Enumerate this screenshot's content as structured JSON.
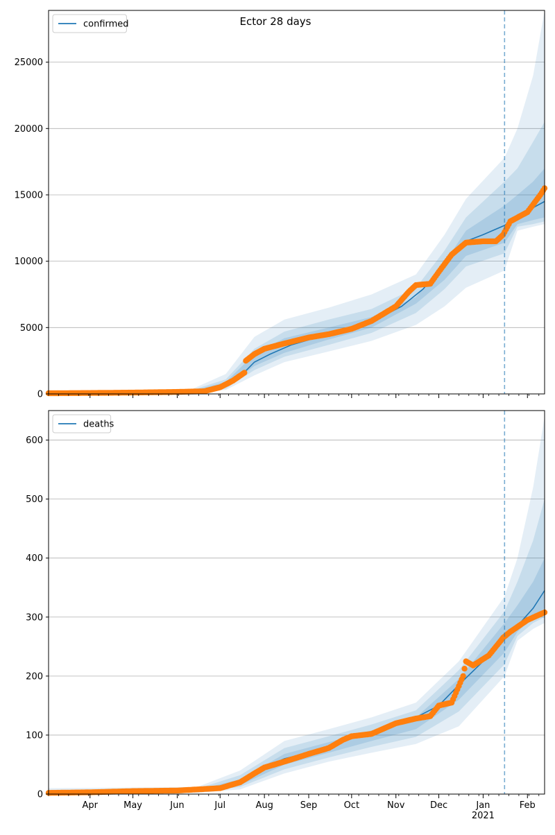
{
  "figure": {
    "title": "Ector 28 days"
  },
  "colors": {
    "model_line": "#1f77b4",
    "observed": "#ff7f0e",
    "band": "#1f77b4",
    "forecast_line": "#1f77b4",
    "grid": "#b0b0b0"
  },
  "chart_data": [
    {
      "type": "line",
      "title": "Ector 28 days",
      "xlabel": "",
      "ylabel": "",
      "legend": {
        "position": "top-left",
        "entries": [
          "confirmed"
        ]
      },
      "grid": {
        "y": true,
        "x": false
      },
      "ylim": [
        0,
        28900
      ],
      "yticks": [
        0,
        5000,
        10000,
        15000,
        20000,
        25000
      ],
      "xlim": [
        "2020-03-03",
        "2021-02-13"
      ],
      "forecast_start": "2021-01-16",
      "series": [
        {
          "name": "confirmed",
          "kind": "model-median",
          "x": [
            "2020-06-10",
            "2020-06-25",
            "2020-07-05",
            "2020-07-15",
            "2020-07-25",
            "2020-08-05",
            "2020-08-20",
            "2020-09-05",
            "2020-09-20",
            "2020-10-05",
            "2020-10-20",
            "2020-11-05",
            "2020-11-20",
            "2020-12-01",
            "2020-12-10",
            "2020-12-20",
            "2021-01-01",
            "2021-01-16",
            "2021-01-25",
            "2021-02-13"
          ],
          "y": [
            150,
            300,
            650,
            1300,
            2400,
            3000,
            3700,
            4200,
            4600,
            5100,
            5700,
            6600,
            7900,
            9300,
            10700,
            11500,
            12000,
            12700,
            13400,
            14500
          ]
        },
        {
          "name": "",
          "kind": "observed",
          "x": [
            "2020-03-03",
            "2020-04-01",
            "2020-05-01",
            "2020-06-01",
            "2020-06-20",
            "2020-07-01",
            "2020-07-10",
            "2020-07-18",
            "2020-07-19",
            "2020-07-25",
            "2020-08-01",
            "2020-08-15",
            "2020-09-01",
            "2020-09-15",
            "2020-10-01",
            "2020-10-15",
            "2020-11-01",
            "2020-11-10",
            "2020-11-15",
            "2020-11-25",
            "2020-12-01",
            "2020-12-10",
            "2020-12-20",
            "2021-01-01",
            "2021-01-10",
            "2021-01-15",
            "2021-01-20",
            "2021-02-01",
            "2021-02-10",
            "2021-02-13"
          ],
          "y": [
            50,
            70,
            100,
            150,
            200,
            500,
            1000,
            1600,
            2500,
            3000,
            3400,
            3800,
            4250,
            4500,
            4900,
            5500,
            6600,
            7700,
            8200,
            8300,
            9200,
            10500,
            11400,
            11500,
            11500,
            12000,
            13000,
            13700,
            15000,
            15500
          ]
        }
      ],
      "bands": [
        {
          "level": "outer",
          "x": [
            "2020-06-10",
            "2020-07-05",
            "2020-07-25",
            "2020-08-15",
            "2020-09-15",
            "2020-10-15",
            "2020-11-15",
            "2020-12-05",
            "2020-12-20",
            "2021-01-16",
            "2021-01-25",
            "2021-02-05",
            "2021-02-13"
          ],
          "lower": [
            80,
            300,
            1400,
            2400,
            3200,
            4000,
            5200,
            6600,
            8000,
            9300,
            12300,
            12600,
            12800
          ],
          "upper": [
            300,
            1500,
            4300,
            5600,
            6500,
            7500,
            9000,
            12000,
            14700,
            17800,
            20000,
            24000,
            28900
          ]
        },
        {
          "level": "middle",
          "x": [
            "2020-06-10",
            "2020-07-05",
            "2020-07-25",
            "2020-08-15",
            "2020-09-15",
            "2020-10-15",
            "2020-11-15",
            "2020-12-05",
            "2020-12-20",
            "2021-01-16",
            "2021-01-25",
            "2021-02-05",
            "2021-02-13"
          ],
          "lower": [
            100,
            400,
            1800,
            2800,
            3700,
            4600,
            6100,
            7900,
            9600,
            10600,
            12600,
            12800,
            13000
          ],
          "upper": [
            250,
            1100,
            3400,
            4700,
            5600,
            6400,
            8000,
            10800,
            13300,
            16000,
            17000,
            19000,
            20500
          ]
        },
        {
          "level": "inner",
          "x": [
            "2020-06-10",
            "2020-07-05",
            "2020-07-25",
            "2020-08-15",
            "2020-09-15",
            "2020-10-15",
            "2020-11-15",
            "2020-12-05",
            "2020-12-20",
            "2021-01-16",
            "2021-01-25",
            "2021-02-05",
            "2021-02-13"
          ],
          "lower": [
            120,
            500,
            2100,
            3100,
            4100,
            5000,
            6800,
            8600,
            10400,
            11400,
            12800,
            13100,
            13300
          ],
          "upper": [
            200,
            900,
            3000,
            4200,
            5000,
            5800,
            7300,
            9900,
            12300,
            14200,
            15000,
            16000,
            17000
          ]
        }
      ]
    },
    {
      "type": "line",
      "title": "",
      "xlabel": "",
      "ylabel": "",
      "legend": {
        "position": "top-left",
        "entries": [
          "deaths"
        ]
      },
      "grid": {
        "y": true,
        "x": false
      },
      "ylim": [
        0,
        650
      ],
      "yticks": [
        0,
        100,
        200,
        300,
        400,
        500,
        600
      ],
      "xlim": [
        "2020-03-03",
        "2021-02-13"
      ],
      "forecast_start": "2021-01-16",
      "xtick_labels": [
        "Apr",
        "May",
        "Jun",
        "Jul",
        "Aug",
        "Sep",
        "Oct",
        "Nov",
        "Dec",
        "Jan\n2021",
        "Feb"
      ],
      "xtick_dates": [
        "2020-04-01",
        "2020-05-01",
        "2020-06-01",
        "2020-07-01",
        "2020-08-01",
        "2020-09-01",
        "2020-10-01",
        "2020-11-01",
        "2020-12-01",
        "2021-01-01",
        "2021-02-01"
      ],
      "series": [
        {
          "name": "deaths",
          "kind": "model-median",
          "x": [
            "2020-06-15",
            "2020-07-01",
            "2020-07-15",
            "2020-08-01",
            "2020-08-15",
            "2020-09-01",
            "2020-09-15",
            "2020-10-01",
            "2020-10-15",
            "2020-11-01",
            "2020-11-15",
            "2020-12-01",
            "2020-12-15",
            "2021-01-01",
            "2021-01-16",
            "2021-01-25",
            "2021-02-05",
            "2021-02-13"
          ],
          "y": [
            5,
            8,
            20,
            45,
            60,
            70,
            80,
            95,
            105,
            118,
            130,
            150,
            185,
            225,
            265,
            285,
            315,
            345
          ]
        },
        {
          "name": "",
          "kind": "observed",
          "x": [
            "2020-03-03",
            "2020-04-01",
            "2020-05-01",
            "2020-06-01",
            "2020-07-01",
            "2020-07-15",
            "2020-07-25",
            "2020-08-01",
            "2020-08-15",
            "2020-09-01",
            "2020-09-15",
            "2020-09-25",
            "2020-10-01",
            "2020-10-15",
            "2020-11-01",
            "2020-11-15",
            "2020-11-25",
            "2020-12-01",
            "2020-12-10",
            "2020-12-18",
            "2020-12-20",
            "2020-12-25",
            "2021-01-05",
            "2021-01-15",
            "2021-01-20",
            "2021-02-01",
            "2021-02-13"
          ],
          "y": [
            2,
            3,
            5,
            6,
            10,
            20,
            35,
            45,
            55,
            68,
            78,
            92,
            98,
            102,
            120,
            128,
            132,
            150,
            155,
            200,
            225,
            218,
            235,
            265,
            275,
            295,
            308
          ]
        }
      ],
      "bands": [
        {
          "level": "outer",
          "x": [
            "2020-03-03",
            "2020-06-15",
            "2020-07-15",
            "2020-08-15",
            "2020-09-15",
            "2020-10-15",
            "2020-11-15",
            "2020-12-15",
            "2021-01-16",
            "2021-01-25",
            "2021-02-05",
            "2021-02-13"
          ],
          "lower": [
            0,
            2,
            8,
            35,
            55,
            70,
            85,
            115,
            200,
            260,
            280,
            290
          ],
          "upper": [
            10,
            12,
            40,
            90,
            110,
            130,
            155,
            225,
            335,
            400,
            520,
            640
          ]
        },
        {
          "level": "middle",
          "x": [
            "2020-03-03",
            "2020-06-15",
            "2020-07-15",
            "2020-08-15",
            "2020-09-15",
            "2020-10-15",
            "2020-11-15",
            "2020-12-15",
            "2021-01-16",
            "2021-01-25",
            "2021-02-05",
            "2021-02-13"
          ],
          "lower": [
            0,
            3,
            12,
            42,
            62,
            80,
            97,
            140,
            220,
            268,
            290,
            300
          ],
          "upper": [
            7,
            9,
            32,
            78,
            98,
            118,
            142,
            210,
            310,
            360,
            430,
            500
          ]
        },
        {
          "level": "inner",
          "x": [
            "2020-03-03",
            "2020-06-15",
            "2020-07-15",
            "2020-08-15",
            "2020-09-15",
            "2020-10-15",
            "2020-11-15",
            "2020-12-15",
            "2021-01-16",
            "2021-01-25",
            "2021-02-05",
            "2021-02-13"
          ],
          "lower": [
            1,
            4,
            15,
            50,
            70,
            90,
            110,
            160,
            240,
            275,
            300,
            315
          ],
          "upper": [
            5,
            7,
            25,
            68,
            88,
            108,
            130,
            195,
            290,
            320,
            360,
            400
          ]
        }
      ]
    }
  ]
}
